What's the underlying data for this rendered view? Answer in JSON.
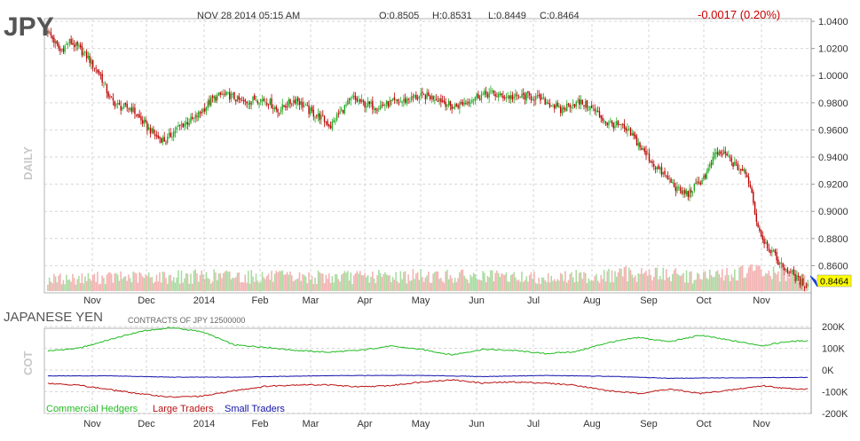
{
  "header": {
    "symbol": "JPY",
    "datetime": "NOV 28 2014 05:15 AM",
    "open": "O:0.8505",
    "high": "H:0.8531",
    "low": "L:0.8449",
    "close": "C:0.8464",
    "change": "-0.0017 (0.20%)",
    "change_color": "#cc0000",
    "period_label": "DAILY"
  },
  "cot": {
    "title": "JAPANESE YEN",
    "subtitle": "CONTRACTS OF JPY 12500000",
    "side_label": "COT"
  },
  "colors": {
    "up_candle": "#22aa22",
    "down_candle": "#bb0000",
    "up_volume": "#a8dca0",
    "down_volume": "#f3b3b3",
    "commercial": "#22bb22",
    "large": "#bb1111",
    "small": "#1111aa",
    "last_price_bg": "#ffff00"
  },
  "chart_data": [
    {
      "type": "candlestick",
      "title": "JPY",
      "x_labels": [
        "Nov",
        "Dec",
        "2014",
        "Feb",
        "Mar",
        "Apr",
        "May",
        "Jun",
        "Jul",
        "Aug",
        "Sep",
        "Oct",
        "Nov"
      ],
      "y_ticks": [
        "1.0400",
        "1.0200",
        "1.0000",
        "0.9800",
        "0.9600",
        "0.9400",
        "0.9200",
        "0.9000",
        "0.8800",
        "0.8600"
      ],
      "ylim": [
        0.84,
        1.042
      ],
      "last_price": "0.8464",
      "close_anchors": [
        [
          0,
          1.033
        ],
        [
          8,
          1.018
        ],
        [
          14,
          1.025
        ],
        [
          20,
          1.02
        ],
        [
          26,
          1.013
        ],
        [
          34,
          1.0
        ],
        [
          40,
          0.983
        ],
        [
          46,
          0.977
        ],
        [
          54,
          0.976
        ],
        [
          60,
          0.967
        ],
        [
          64,
          0.962
        ],
        [
          70,
          0.955
        ],
        [
          76,
          0.952
        ],
        [
          82,
          0.96
        ],
        [
          88,
          0.965
        ],
        [
          94,
          0.968
        ],
        [
          100,
          0.975
        ],
        [
          106,
          0.983
        ],
        [
          112,
          0.986
        ],
        [
          118,
          0.985
        ],
        [
          126,
          0.98
        ],
        [
          134,
          0.983
        ],
        [
          142,
          0.981
        ],
        [
          148,
          0.974
        ],
        [
          154,
          0.979
        ],
        [
          160,
          0.983
        ],
        [
          168,
          0.974
        ],
        [
          176,
          0.969
        ],
        [
          182,
          0.963
        ],
        [
          188,
          0.973
        ],
        [
          196,
          0.983
        ],
        [
          204,
          0.979
        ],
        [
          212,
          0.977
        ],
        [
          220,
          0.98
        ],
        [
          228,
          0.981
        ],
        [
          236,
          0.984
        ],
        [
          244,
          0.985
        ],
        [
          252,
          0.983
        ],
        [
          260,
          0.977
        ],
        [
          268,
          0.98
        ],
        [
          276,
          0.985
        ],
        [
          284,
          0.987
        ],
        [
          292,
          0.985
        ],
        [
          300,
          0.984
        ],
        [
          308,
          0.985
        ],
        [
          316,
          0.983
        ],
        [
          324,
          0.979
        ],
        [
          330,
          0.974
        ],
        [
          336,
          0.979
        ],
        [
          344,
          0.98
        ],
        [
          352,
          0.974
        ],
        [
          360,
          0.965
        ],
        [
          368,
          0.963
        ],
        [
          376,
          0.956
        ],
        [
          384,
          0.943
        ],
        [
          392,
          0.932
        ],
        [
          400,
          0.923
        ],
        [
          406,
          0.915
        ],
        [
          412,
          0.913
        ],
        [
          418,
          0.92
        ],
        [
          424,
          0.928
        ],
        [
          430,
          0.943
        ],
        [
          436,
          0.942
        ],
        [
          442,
          0.934
        ],
        [
          448,
          0.929
        ],
        [
          452,
          0.92
        ],
        [
          456,
          0.893
        ],
        [
          460,
          0.88
        ],
        [
          466,
          0.87
        ],
        [
          472,
          0.86
        ],
        [
          478,
          0.855
        ],
        [
          484,
          0.848
        ],
        [
          489,
          0.8464
        ]
      ],
      "volume_anchors": [
        [
          0,
          0.35
        ],
        [
          40,
          0.4
        ],
        [
          80,
          0.42
        ],
        [
          120,
          0.45
        ],
        [
          160,
          0.4
        ],
        [
          200,
          0.42
        ],
        [
          240,
          0.45
        ],
        [
          280,
          0.42
        ],
        [
          320,
          0.4
        ],
        [
          360,
          0.45
        ],
        [
          380,
          0.55
        ],
        [
          400,
          0.48
        ],
        [
          420,
          0.42
        ],
        [
          440,
          0.5
        ],
        [
          455,
          0.6
        ],
        [
          470,
          0.5
        ],
        [
          489,
          0.4
        ]
      ]
    },
    {
      "type": "line",
      "title": "JAPANESE YEN",
      "subtitle": "CONTRACTS OF JPY 12500000",
      "y_ticks": [
        "200K",
        "100K",
        "0K",
        "-100K",
        "-200K"
      ],
      "ylim": [
        -200000,
        200000
      ],
      "x_labels": [
        "Nov",
        "Dec",
        "2014",
        "Feb",
        "Mar",
        "Apr",
        "May",
        "Jun",
        "Jul",
        "Aug",
        "Sep",
        "Oct",
        "Nov"
      ],
      "legend": [
        "Commercial Hedgers",
        "Large Traders",
        "Small Traders"
      ],
      "series": [
        {
          "name": "Commercial Hedgers",
          "values": [
            [
              0,
              88000
            ],
            [
              20,
              100000
            ],
            [
              40,
              140000
            ],
            [
              60,
              178000
            ],
            [
              80,
              195000
            ],
            [
              100,
              175000
            ],
            [
              120,
              115000
            ],
            [
              140,
              105000
            ],
            [
              160,
              90000
            ],
            [
              180,
              82000
            ],
            [
              200,
              90000
            ],
            [
              220,
              110000
            ],
            [
              240,
              95000
            ],
            [
              260,
              70000
            ],
            [
              280,
              95000
            ],
            [
              300,
              90000
            ],
            [
              320,
              75000
            ],
            [
              340,
              85000
            ],
            [
              360,
              125000
            ],
            [
              380,
              150000
            ],
            [
              400,
              130000
            ],
            [
              420,
              160000
            ],
            [
              440,
              135000
            ],
            [
              460,
              112000
            ],
            [
              475,
              130000
            ],
            [
              489,
              135000
            ]
          ]
        },
        {
          "name": "Large Traders",
          "values": [
            [
              0,
              -60000
            ],
            [
              20,
              -70000
            ],
            [
              40,
              -90000
            ],
            [
              60,
              -110000
            ],
            [
              80,
              -125000
            ],
            [
              100,
              -120000
            ],
            [
              120,
              -95000
            ],
            [
              140,
              -75000
            ],
            [
              160,
              -68000
            ],
            [
              180,
              -68000
            ],
            [
              200,
              -78000
            ],
            [
              220,
              -72000
            ],
            [
              240,
              -55000
            ],
            [
              260,
              -45000
            ],
            [
              280,
              -60000
            ],
            [
              300,
              -55000
            ],
            [
              320,
              -60000
            ],
            [
              340,
              -70000
            ],
            [
              360,
              -95000
            ],
            [
              380,
              -108000
            ],
            [
              400,
              -88000
            ],
            [
              420,
              -108000
            ],
            [
              440,
              -92000
            ],
            [
              460,
              -72000
            ],
            [
              475,
              -85000
            ],
            [
              489,
              -88000
            ]
          ]
        },
        {
          "name": "Small Traders",
          "values": [
            [
              0,
              -27000
            ],
            [
              40,
              -27000
            ],
            [
              80,
              -33000
            ],
            [
              120,
              -33000
            ],
            [
              160,
              -28000
            ],
            [
              200,
              -25000
            ],
            [
              240,
              -25000
            ],
            [
              280,
              -30000
            ],
            [
              320,
              -25000
            ],
            [
              360,
              -29000
            ],
            [
              400,
              -38000
            ],
            [
              440,
              -36000
            ],
            [
              489,
              -34000
            ]
          ]
        }
      ]
    }
  ]
}
